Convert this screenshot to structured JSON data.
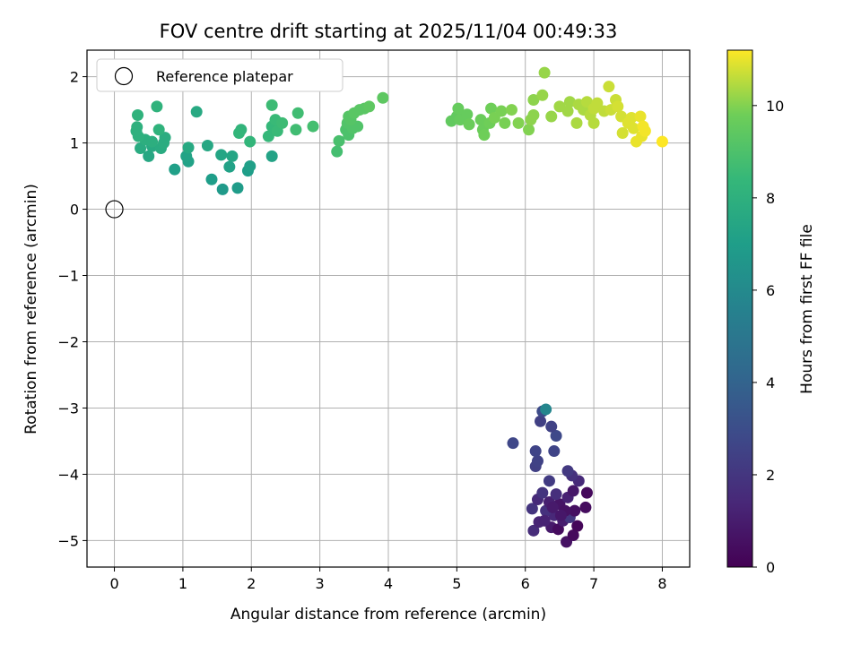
{
  "chart_data": {
    "type": "scatter",
    "title": "FOV centre drift starting at 2025/11/04 00:49:33",
    "xlabel": "Angular distance from reference (arcmin)",
    "ylabel": "Rotation from reference (arcmin)",
    "xlim": [
      -0.4,
      8.4
    ],
    "ylim": [
      -5.4,
      2.4
    ],
    "xticks": [
      0,
      1,
      2,
      3,
      4,
      5,
      6,
      7,
      8
    ],
    "yticks": [
      -5,
      -4,
      -3,
      -2,
      -1,
      0,
      1,
      2
    ],
    "grid": true,
    "colorbar": {
      "label": "Hours from first FF file",
      "range": [
        0,
        11.2
      ],
      "ticks": [
        0,
        2,
        4,
        6,
        8,
        10
      ],
      "colormap": "viridis"
    },
    "legend": {
      "position": "top-left",
      "entries": [
        {
          "label": "Reference platepar",
          "marker": "open-circle",
          "x": 0,
          "y": 0
        }
      ]
    },
    "points": [
      {
        "x": 6.6,
        "y": -5.02,
        "h": 0.6
      },
      {
        "x": 6.12,
        "y": -4.85,
        "h": 1.6
      },
      {
        "x": 6.2,
        "y": -4.72,
        "h": 1.3
      },
      {
        "x": 6.38,
        "y": -4.8,
        "h": 0.9
      },
      {
        "x": 6.48,
        "y": -4.83,
        "h": 0.4
      },
      {
        "x": 6.7,
        "y": -4.92,
        "h": 0.3
      },
      {
        "x": 6.76,
        "y": -4.78,
        "h": 0.2
      },
      {
        "x": 6.55,
        "y": -4.7,
        "h": 1.0
      },
      {
        "x": 6.42,
        "y": -4.62,
        "h": 1.4
      },
      {
        "x": 6.3,
        "y": -4.55,
        "h": 1.8
      },
      {
        "x": 6.1,
        "y": -4.52,
        "h": 1.9
      },
      {
        "x": 6.65,
        "y": -4.65,
        "h": 2.0
      },
      {
        "x": 6.72,
        "y": -4.55,
        "h": 0.5
      },
      {
        "x": 6.5,
        "y": -4.45,
        "h": 0.7
      },
      {
        "x": 6.35,
        "y": -4.42,
        "h": 1.1
      },
      {
        "x": 6.18,
        "y": -4.38,
        "h": 1.5
      },
      {
        "x": 6.62,
        "y": -4.35,
        "h": 1.2
      },
      {
        "x": 6.45,
        "y": -4.3,
        "h": 1.7
      },
      {
        "x": 6.25,
        "y": -4.28,
        "h": 1.9
      },
      {
        "x": 6.7,
        "y": -4.25,
        "h": 0.8
      },
      {
        "x": 6.9,
        "y": -4.28,
        "h": 0.3
      },
      {
        "x": 6.88,
        "y": -4.5,
        "h": 0.4
      },
      {
        "x": 6.58,
        "y": -4.55,
        "h": 0.6
      },
      {
        "x": 6.4,
        "y": -4.5,
        "h": 0.9
      },
      {
        "x": 6.78,
        "y": -4.1,
        "h": 1.5
      },
      {
        "x": 6.68,
        "y": -4.02,
        "h": 1.8
      },
      {
        "x": 6.62,
        "y": -3.95,
        "h": 2.1
      },
      {
        "x": 6.35,
        "y": -4.1,
        "h": 2.2
      },
      {
        "x": 6.15,
        "y": -3.88,
        "h": 2.4
      },
      {
        "x": 6.18,
        "y": -3.8,
        "h": 2.5
      },
      {
        "x": 6.15,
        "y": -3.65,
        "h": 2.6
      },
      {
        "x": 6.42,
        "y": -3.65,
        "h": 2.6
      },
      {
        "x": 5.82,
        "y": -3.53,
        "h": 2.7
      },
      {
        "x": 6.45,
        "y": -3.42,
        "h": 2.8
      },
      {
        "x": 6.22,
        "y": -3.2,
        "h": 2.4
      },
      {
        "x": 6.38,
        "y": -3.28,
        "h": 2.5
      },
      {
        "x": 6.25,
        "y": -3.05,
        "h": 2.9
      },
      {
        "x": 6.3,
        "y": -3.02,
        "h": 5.8
      },
      {
        "x": 6.52,
        "y": -4.62,
        "h": 0.8
      },
      {
        "x": 6.28,
        "y": -4.7,
        "h": 1.2
      },
      {
        "x": 1.58,
        "y": 0.3,
        "h": 6.8
      },
      {
        "x": 1.8,
        "y": 0.32,
        "h": 6.9
      },
      {
        "x": 1.42,
        "y": 0.45,
        "h": 7.0
      },
      {
        "x": 0.88,
        "y": 0.6,
        "h": 7.1
      },
      {
        "x": 1.95,
        "y": 0.58,
        "h": 7.0
      },
      {
        "x": 1.98,
        "y": 0.65,
        "h": 7.1
      },
      {
        "x": 1.68,
        "y": 0.64,
        "h": 7.2
      },
      {
        "x": 1.08,
        "y": 0.72,
        "h": 7.2
      },
      {
        "x": 1.05,
        "y": 0.8,
        "h": 7.3
      },
      {
        "x": 2.3,
        "y": 0.8,
        "h": 7.3
      },
      {
        "x": 1.56,
        "y": 0.82,
        "h": 7.4
      },
      {
        "x": 1.72,
        "y": 0.8,
        "h": 7.4
      },
      {
        "x": 0.5,
        "y": 0.8,
        "h": 7.5
      },
      {
        "x": 1.36,
        "y": 0.96,
        "h": 7.5
      },
      {
        "x": 1.08,
        "y": 0.93,
        "h": 7.6
      },
      {
        "x": 0.55,
        "y": 0.95,
        "h": 7.6
      },
      {
        "x": 0.68,
        "y": 0.92,
        "h": 7.7
      },
      {
        "x": 0.38,
        "y": 0.92,
        "h": 7.7
      },
      {
        "x": 0.72,
        "y": 1.0,
        "h": 7.8
      },
      {
        "x": 0.74,
        "y": 1.08,
        "h": 7.8
      },
      {
        "x": 0.45,
        "y": 1.05,
        "h": 7.9
      },
      {
        "x": 0.55,
        "y": 1.02,
        "h": 7.9
      },
      {
        "x": 0.35,
        "y": 1.1,
        "h": 8.0
      },
      {
        "x": 0.32,
        "y": 1.18,
        "h": 8.0
      },
      {
        "x": 0.33,
        "y": 1.24,
        "h": 8.0
      },
      {
        "x": 0.65,
        "y": 1.2,
        "h": 8.1
      },
      {
        "x": 0.34,
        "y": 1.42,
        "h": 8.1
      },
      {
        "x": 0.62,
        "y": 1.55,
        "h": 8.1
      },
      {
        "x": 1.2,
        "y": 1.47,
        "h": 7.6
      },
      {
        "x": 1.85,
        "y": 1.2,
        "h": 8.2
      },
      {
        "x": 1.82,
        "y": 1.15,
        "h": 8.3
      },
      {
        "x": 1.98,
        "y": 1.02,
        "h": 8.3
      },
      {
        "x": 2.25,
        "y": 1.1,
        "h": 8.4
      },
      {
        "x": 2.3,
        "y": 1.25,
        "h": 8.4
      },
      {
        "x": 2.38,
        "y": 1.18,
        "h": 8.5
      },
      {
        "x": 2.35,
        "y": 1.35,
        "h": 8.5
      },
      {
        "x": 2.45,
        "y": 1.3,
        "h": 8.6
      },
      {
        "x": 2.3,
        "y": 1.57,
        "h": 8.6
      },
      {
        "x": 2.65,
        "y": 1.2,
        "h": 8.7
      },
      {
        "x": 2.68,
        "y": 1.45,
        "h": 8.7
      },
      {
        "x": 2.9,
        "y": 1.25,
        "h": 8.8
      },
      {
        "x": 3.25,
        "y": 0.87,
        "h": 8.8
      },
      {
        "x": 3.28,
        "y": 1.03,
        "h": 8.9
      },
      {
        "x": 3.42,
        "y": 1.12,
        "h": 9.0
      },
      {
        "x": 3.38,
        "y": 1.2,
        "h": 9.0
      },
      {
        "x": 3.48,
        "y": 1.22,
        "h": 9.1
      },
      {
        "x": 3.55,
        "y": 1.25,
        "h": 9.1
      },
      {
        "x": 3.4,
        "y": 1.3,
        "h": 9.1
      },
      {
        "x": 3.45,
        "y": 1.35,
        "h": 9.2
      },
      {
        "x": 3.42,
        "y": 1.4,
        "h": 9.2
      },
      {
        "x": 3.5,
        "y": 1.45,
        "h": 9.3
      },
      {
        "x": 3.58,
        "y": 1.5,
        "h": 9.3
      },
      {
        "x": 3.65,
        "y": 1.52,
        "h": 9.3
      },
      {
        "x": 3.72,
        "y": 1.55,
        "h": 9.4
      },
      {
        "x": 3.92,
        "y": 1.68,
        "h": 9.4
      },
      {
        "x": 4.92,
        "y": 1.33,
        "h": 9.5
      },
      {
        "x": 5.0,
        "y": 1.4,
        "h": 9.5
      },
      {
        "x": 5.02,
        "y": 1.52,
        "h": 9.6
      },
      {
        "x": 5.05,
        "y": 1.35,
        "h": 9.6
      },
      {
        "x": 5.15,
        "y": 1.43,
        "h": 9.6
      },
      {
        "x": 5.18,
        "y": 1.28,
        "h": 9.7
      },
      {
        "x": 5.35,
        "y": 1.35,
        "h": 9.7
      },
      {
        "x": 5.38,
        "y": 1.2,
        "h": 9.7
      },
      {
        "x": 5.4,
        "y": 1.12,
        "h": 9.8
      },
      {
        "x": 5.48,
        "y": 1.3,
        "h": 9.8
      },
      {
        "x": 5.5,
        "y": 1.52,
        "h": 9.8
      },
      {
        "x": 5.55,
        "y": 1.38,
        "h": 9.9
      },
      {
        "x": 5.65,
        "y": 1.48,
        "h": 9.9
      },
      {
        "x": 5.7,
        "y": 1.3,
        "h": 9.9
      },
      {
        "x": 5.8,
        "y": 1.5,
        "h": 10.0
      },
      {
        "x": 5.9,
        "y": 1.3,
        "h": 10.0
      },
      {
        "x": 6.05,
        "y": 1.2,
        "h": 10.0
      },
      {
        "x": 6.08,
        "y": 1.35,
        "h": 10.1
      },
      {
        "x": 6.12,
        "y": 1.42,
        "h": 10.1
      },
      {
        "x": 6.12,
        "y": 1.65,
        "h": 10.1
      },
      {
        "x": 6.25,
        "y": 1.72,
        "h": 10.2
      },
      {
        "x": 6.28,
        "y": 2.06,
        "h": 10.2
      },
      {
        "x": 6.38,
        "y": 1.4,
        "h": 10.2
      },
      {
        "x": 6.5,
        "y": 1.55,
        "h": 10.3
      },
      {
        "x": 6.62,
        "y": 1.48,
        "h": 10.3
      },
      {
        "x": 6.65,
        "y": 1.62,
        "h": 10.3
      },
      {
        "x": 6.75,
        "y": 1.3,
        "h": 10.4
      },
      {
        "x": 6.78,
        "y": 1.58,
        "h": 10.4
      },
      {
        "x": 6.85,
        "y": 1.5,
        "h": 10.4
      },
      {
        "x": 6.9,
        "y": 1.62,
        "h": 10.5
      },
      {
        "x": 6.95,
        "y": 1.42,
        "h": 10.5
      },
      {
        "x": 7.0,
        "y": 1.3,
        "h": 10.5
      },
      {
        "x": 7.0,
        "y": 1.52,
        "h": 10.6
      },
      {
        "x": 7.05,
        "y": 1.6,
        "h": 10.6
      },
      {
        "x": 7.15,
        "y": 1.48,
        "h": 10.6
      },
      {
        "x": 7.22,
        "y": 1.85,
        "h": 10.7
      },
      {
        "x": 7.25,
        "y": 1.5,
        "h": 10.7
      },
      {
        "x": 7.32,
        "y": 1.65,
        "h": 10.7
      },
      {
        "x": 7.35,
        "y": 1.55,
        "h": 10.8
      },
      {
        "x": 7.4,
        "y": 1.4,
        "h": 10.8
      },
      {
        "x": 7.42,
        "y": 1.15,
        "h": 10.8
      },
      {
        "x": 7.5,
        "y": 1.3,
        "h": 10.9
      },
      {
        "x": 7.55,
        "y": 1.38,
        "h": 10.9
      },
      {
        "x": 7.58,
        "y": 1.22,
        "h": 10.9
      },
      {
        "x": 7.62,
        "y": 1.02,
        "h": 11.0
      },
      {
        "x": 7.68,
        "y": 1.4,
        "h": 11.0
      },
      {
        "x": 7.7,
        "y": 1.1,
        "h": 11.0
      },
      {
        "x": 7.72,
        "y": 1.25,
        "h": 11.1
      },
      {
        "x": 7.75,
        "y": 1.18,
        "h": 11.1
      },
      {
        "x": 8.0,
        "y": 1.02,
        "h": 11.2
      }
    ]
  }
}
